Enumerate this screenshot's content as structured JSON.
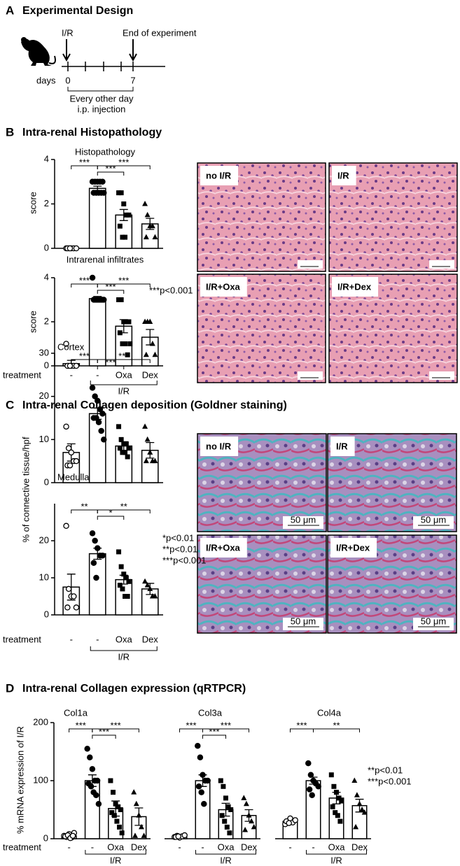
{
  "design": {
    "label": "A",
    "title": "Experimental Design",
    "start": "I/R",
    "end": "End of experiment",
    "axis_label": "days",
    "day_start": 0,
    "day_end": 7,
    "note": [
      "Every other day",
      "i.p. injection"
    ]
  },
  "panels": [
    {
      "label": "B",
      "title": "Intra-renal Histopathology"
    },
    {
      "label": "C",
      "title": "Intra-renal Collagen deposition (Goldner staining)"
    },
    {
      "label": "D",
      "title": "Intra-renal Collagen expression (qRTPCR)"
    }
  ],
  "images": {
    "B": [
      "no I/R",
      "I/R",
      "I/R+Oxa",
      "I/R+Dex"
    ],
    "C": [
      "no I/R",
      "I/R",
      "I/R+Oxa",
      "I/R+Dex"
    ],
    "scale_bar": "50 μm"
  },
  "chart_data": [
    {
      "type": "bar",
      "title": "Histopathology",
      "ylabel": "score",
      "values": [
        0,
        2.7,
        1.5,
        1.1
      ],
      "errors": [
        0,
        0.1,
        0.25,
        0.25
      ],
      "points": [
        [
          0,
          0,
          0,
          0,
          0,
          0,
          0
        ],
        [
          3,
          3,
          3,
          3,
          3,
          2.5,
          2.5,
          2.5,
          2.5,
          2.5
        ],
        [
          2.5,
          2.5,
          2,
          1.5,
          1.5,
          1,
          0.5,
          0.5
        ],
        [
          2,
          1.5,
          1,
          1,
          0.5,
          0.5
        ]
      ],
      "markers": [
        "open-circle",
        "circle",
        "square",
        "triangle"
      ],
      "color": "#ffffff",
      "ylim": [
        0,
        4
      ],
      "yticks": [
        0,
        2,
        4
      ],
      "brackets": [
        {
          "pair": [
            0,
            1
          ],
          "label": "***"
        },
        {
          "pair": [
            1,
            2
          ],
          "label": "***"
        },
        {
          "pair": [
            1,
            3
          ],
          "label": "***"
        }
      ]
    },
    {
      "type": "bar",
      "title": "Intrarenal infiltrates",
      "ylabel": "score",
      "x_label": "treatment",
      "categories": [
        "-",
        "-",
        "Oxa",
        "Dex"
      ],
      "group_label": "I/R",
      "values": [
        0.1,
        3.05,
        1.8,
        1.3
      ],
      "errors": [
        0.15,
        0.1,
        0.3,
        0.35
      ],
      "points": [
        [
          1,
          0,
          0,
          0,
          0,
          0,
          0
        ],
        [
          4,
          3,
          3,
          3,
          3,
          3,
          3,
          3,
          3,
          3
        ],
        [
          3,
          3,
          2,
          2,
          2,
          1.5,
          1,
          1,
          0.5,
          1
        ],
        [
          2,
          2,
          2,
          1,
          0.5,
          0.5
        ]
      ],
      "markers": [
        "open-circle",
        "circle",
        "square",
        "triangle"
      ],
      "color": "#ffffff",
      "ylim": [
        0,
        4
      ],
      "yticks": [
        0,
        2,
        4
      ],
      "brackets": [
        {
          "pair": [
            0,
            1
          ],
          "label": "***"
        },
        {
          "pair": [
            1,
            2
          ],
          "label": "***"
        },
        {
          "pair": [
            1,
            3
          ],
          "label": "***"
        }
      ],
      "annotations": [
        "***p<0.001"
      ]
    },
    {
      "type": "bar",
      "title": "Cortex",
      "ylabel": "% of connective tissue/hpf",
      "values": [
        7,
        16,
        8.5,
        7.5
      ],
      "errors": [
        2,
        1.3,
        1,
        1.8
      ],
      "points": [
        [
          13,
          8,
          7,
          5,
          5,
          4,
          4
        ],
        [
          22,
          20,
          19,
          17,
          16,
          15,
          15,
          14,
          12,
          10
        ],
        [
          13,
          10,
          9,
          9,
          8,
          8,
          7,
          7,
          6
        ],
        [
          13,
          10,
          7,
          5,
          5,
          5
        ]
      ],
      "markers": [
        "open-circle",
        "circle",
        "square",
        "triangle"
      ],
      "color": "#ffffff",
      "ylim": [
        0,
        30
      ],
      "yticks": [
        0,
        10,
        20,
        30
      ],
      "brackets": [
        {
          "pair": [
            0,
            1
          ],
          "label": "***"
        },
        {
          "pair": [
            1,
            2
          ],
          "label": "***"
        },
        {
          "pair": [
            1,
            3
          ],
          "label": "***"
        }
      ]
    },
    {
      "type": "bar",
      "title": "Medulla",
      "x_label": "treatment",
      "categories": [
        "-",
        "-",
        "Oxa",
        "Dex"
      ],
      "group_label": "I/R",
      "values": [
        7.5,
        16.5,
        9.5,
        7
      ],
      "errors": [
        3.5,
        1.5,
        1.2,
        1.5
      ],
      "points": [
        [
          24,
          7,
          5,
          5,
          2,
          2
        ],
        [
          22,
          20,
          18,
          16,
          16,
          14,
          10
        ],
        [
          17,
          13,
          11,
          10,
          9,
          8,
          7,
          5,
          5
        ],
        [
          9,
          8,
          7,
          5,
          5
        ]
      ],
      "markers": [
        "open-circle",
        "circle",
        "square",
        "triangle"
      ],
      "color": "#ffffff",
      "ylim": [
        0,
        30
      ],
      "yticks": [
        0,
        10,
        20
      ],
      "brackets": [
        {
          "pair": [
            0,
            1
          ],
          "label": "**"
        },
        {
          "pair": [
            1,
            2
          ],
          "label": "*"
        },
        {
          "pair": [
            1,
            3
          ],
          "label": "**"
        }
      ],
      "annotations": [
        "*p<0.01",
        "**p<0.01",
        "***p<0.001"
      ]
    },
    {
      "type": "bar",
      "title": "Col1a",
      "ylabel": "% mRNA expression of I/R",
      "x_label": "treatment",
      "categories": [
        "-",
        "-",
        "Oxa",
        "Dex"
      ],
      "group_label": "I/R",
      "values": [
        5,
        100,
        52,
        38
      ],
      "errors": [
        1.5,
        10,
        13,
        15
      ],
      "points": [
        [
          5,
          3,
          8,
          2,
          10,
          4,
          6,
          1,
          5
        ],
        [
          155,
          140,
          120,
          100,
          100,
          95,
          90,
          80,
          75,
          60
        ],
        [
          100,
          80,
          60,
          55,
          50,
          45,
          40,
          30,
          20,
          10
        ],
        [
          80,
          60,
          40,
          20,
          5,
          5
        ]
      ],
      "markers": [
        "open-circle",
        "circle",
        "square",
        "triangle"
      ],
      "color": "#ffffff",
      "ylim": [
        0,
        200
      ],
      "yticks": [
        0,
        100,
        200
      ],
      "brackets": [
        {
          "pair": [
            0,
            1
          ],
          "label": "***"
        },
        {
          "pair": [
            1,
            2
          ],
          "label": "***"
        },
        {
          "pair": [
            1,
            3
          ],
          "label": "***"
        }
      ]
    },
    {
      "type": "bar",
      "title": "Col3a",
      "categories": [
        "-",
        "-",
        "Oxa",
        "Dex"
      ],
      "group_label": "I/R",
      "values": [
        4,
        100,
        50,
        40
      ],
      "errors": [
        1,
        10,
        11,
        10
      ],
      "points": [
        [
          3,
          5,
          2,
          4,
          6,
          3,
          4
        ],
        [
          160,
          140,
          110,
          100,
          100,
          90,
          80,
          60
        ],
        [
          100,
          90,
          70,
          55,
          50,
          40,
          30,
          20,
          10
        ],
        [
          70,
          60,
          40,
          30,
          20,
          15
        ]
      ],
      "markers": [
        "open-circle",
        "circle",
        "square",
        "triangle"
      ],
      "color": "#ffffff",
      "ylim": [
        0,
        200
      ],
      "brackets": [
        {
          "pair": [
            0,
            1
          ],
          "label": "***"
        },
        {
          "pair": [
            1,
            2
          ],
          "label": "***"
        },
        {
          "pair": [
            1,
            3
          ],
          "label": "***"
        }
      ]
    },
    {
      "type": "bar",
      "title": "Col4a",
      "categories": [
        "-",
        "-",
        "Oxa",
        "Dex"
      ],
      "group_label": "I/R",
      "values": [
        30,
        100,
        70,
        57
      ],
      "errors": [
        2,
        6,
        10,
        11
      ],
      "points": [
        [
          25,
          30,
          35,
          28,
          32,
          30,
          27
        ],
        [
          130,
          110,
          100,
          95,
          90,
          85,
          75
        ],
        [
          110,
          90,
          80,
          70,
          65,
          55,
          45,
          40,
          30
        ],
        [
          100,
          75,
          60,
          50,
          45,
          20
        ]
      ],
      "markers": [
        "open-circle",
        "circle",
        "square",
        "triangle"
      ],
      "color": "#ffffff",
      "ylim": [
        0,
        200
      ],
      "brackets": [
        {
          "pair": [
            0,
            1
          ],
          "label": "***"
        },
        {
          "pair": [
            1,
            3
          ],
          "label": "**"
        }
      ],
      "annotations": [
        "**p<0.01",
        "***p<0.001"
      ]
    }
  ]
}
